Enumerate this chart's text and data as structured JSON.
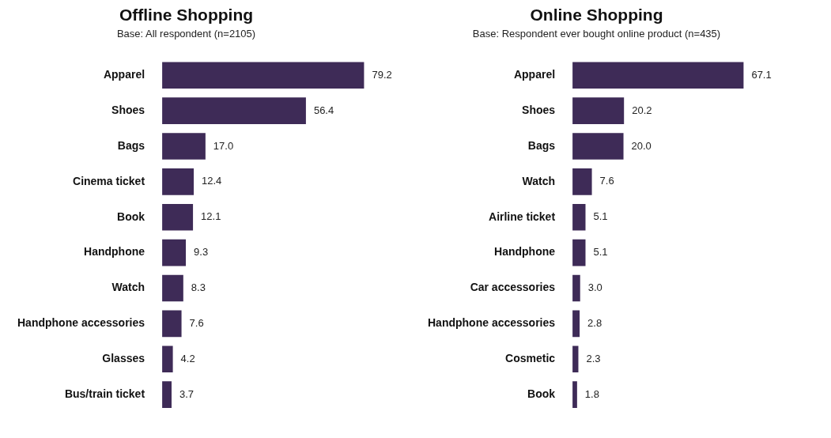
{
  "chart_data": [
    {
      "type": "bar",
      "orientation": "horizontal",
      "title": "Offline Shopping",
      "subtitle": "Base: All respondent (n=2105)",
      "categories": [
        "Apparel",
        "Shoes",
        "Bags",
        "Cinema ticket",
        "Book",
        "Handphone",
        "Watch",
        "Handphone accessories",
        "Glasses",
        "Bus/train ticket"
      ],
      "values": [
        79.2,
        56.4,
        17.0,
        12.4,
        12.1,
        9.3,
        8.3,
        7.6,
        4.2,
        3.7
      ],
      "value_labels": [
        "79.2",
        "56.4",
        "17.0",
        "12.4",
        "12.1",
        "9.3",
        "8.3",
        "7.6",
        "4.2",
        "3.7"
      ],
      "color": "#3e2b57",
      "tick_labels": "y"
    },
    {
      "type": "bar",
      "orientation": "horizontal",
      "title": "Online Shopping",
      "subtitle": "Base: Respondent ever bought online product (n=435)",
      "categories": [
        "Apparel",
        "Shoes",
        "Bags",
        "Watch",
        "Airline ticket",
        "Handphone",
        "Car accessories",
        "Handphone accessories",
        "Cosmetic",
        "Book"
      ],
      "values": [
        67.1,
        20.2,
        20.0,
        7.6,
        5.1,
        5.1,
        3.0,
        2.8,
        2.3,
        1.8
      ],
      "value_labels": [
        "67.1",
        "20.2",
        "20.0",
        "7.6",
        "5.1",
        "5.1",
        "3.0",
        "2.8",
        "2.3",
        "1.8"
      ],
      "color": "#3e2b57",
      "tick_labels": "y"
    }
  ]
}
